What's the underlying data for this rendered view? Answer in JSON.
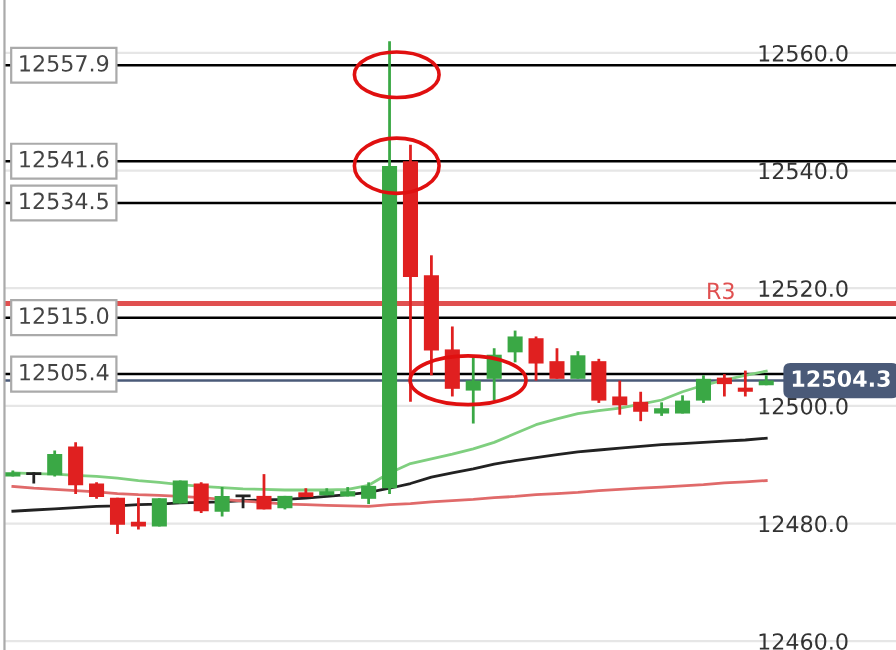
{
  "chart_data": {
    "type": "candlestick",
    "categories": [
      null,
      null,
      null,
      null,
      null,
      null,
      null,
      null,
      null,
      null,
      null,
      null,
      null,
      null,
      null,
      null,
      null,
      null,
      null,
      null,
      null,
      null,
      null,
      null,
      null,
      null,
      null,
      null,
      null,
      null,
      null,
      null,
      null,
      null,
      null,
      null,
      null
    ],
    "ohlc": [
      [
        12488,
        12489,
        12488,
        12488.7
      ],
      [
        12488.5,
        12488.7,
        12486.8,
        12488.5
      ],
      [
        12488.2,
        12492.4,
        12488,
        12491.8
      ],
      [
        12493.1,
        12493.8,
        12485,
        12486.5
      ],
      [
        12486.8,
        12487,
        12484.2,
        12484.5
      ],
      [
        12484.4,
        12484.4,
        12478.2,
        12479.8
      ],
      [
        12480.3,
        12484.4,
        12479,
        12479.5
      ],
      [
        12479.5,
        12484.3,
        12479.5,
        12484.3
      ],
      [
        12483.4,
        12487.3,
        12483.4,
        12487.3
      ],
      [
        12486.8,
        12487,
        12481.8,
        12482.1
      ],
      [
        12482,
        12486.2,
        12481.2,
        12484.7
      ],
      [
        12484.7,
        12484.8,
        12482.6,
        12484.7
      ],
      [
        12484.7,
        12488.4,
        12482.4,
        12482.4
      ],
      [
        12482.6,
        12484.7,
        12482.4,
        12484.7
      ],
      [
        12485.3,
        12486,
        12484.5,
        12484.5
      ],
      [
        12484.8,
        12486,
        12484.8,
        12485.5
      ],
      [
        12484.6,
        12486.2,
        12484.6,
        12485.5
      ],
      [
        12484.2,
        12487,
        12483.3,
        12486.4
      ],
      [
        12486,
        12562,
        12485,
        12540.8
      ],
      [
        12541.6,
        12544.4,
        12500.7,
        12521.9
      ],
      [
        12522.2,
        12525.6,
        12505.2,
        12509.4
      ],
      [
        12509.6,
        12513.5,
        12501.6,
        12502.9
      ],
      [
        12502.6,
        12508.3,
        12497,
        12504.3
      ],
      [
        12504.6,
        12509.8,
        12500.9,
        12508.7
      ],
      [
        12509.1,
        12512.8,
        12507.4,
        12511.8
      ],
      [
        12511.5,
        12511.8,
        12504.3,
        12507.2
      ],
      [
        12507.6,
        12509.8,
        12504.6,
        12504.6
      ],
      [
        12504.6,
        12509.3,
        12504.6,
        12508.6
      ],
      [
        12507.6,
        12508,
        12500.5,
        12500.9
      ],
      [
        12501.6,
        12504.3,
        12498.5,
        12500.1
      ],
      [
        12500.7,
        12502.4,
        12497.4,
        12499
      ],
      [
        12498.7,
        12500.6,
        12498.3,
        12499.6
      ],
      [
        12498.7,
        12501.8,
        12498.7,
        12500.9
      ],
      [
        12500.9,
        12505.2,
        12500.5,
        12504.6
      ],
      [
        12504.8,
        12505.4,
        12501.6,
        12503.7
      ],
      [
        12503.1,
        12506,
        12501.6,
        12502.4
      ],
      [
        12503.5,
        12505.2,
        12503.5,
        12504.3
      ]
    ],
    "series": [
      {
        "type": "line",
        "color": "#7fcf7f",
        "values": [
          12488.6,
          12488.5,
          12488.4,
          12488.2,
          12488,
          12487.7,
          12487.3,
          12487,
          12486.6,
          12486.3,
          12486.1,
          12485.9,
          12485.8,
          12485.7,
          12485.7,
          12485.7,
          12485.8,
          12486.5,
          12488.6,
          12490.2,
          12491,
          12491.8,
          12492.7,
          12493.8,
          12495.3,
          12496.8,
          12497.8,
          12498.7,
          12499.2,
          12499.6,
          12500.3,
          12501,
          12502.4,
          12503.5,
          12504.4,
          12505.2,
          12505.9
        ]
      },
      {
        "type": "line",
        "color": "#222222",
        "values": [
          12482.1,
          12482.3,
          12482.5,
          12482.7,
          12482.9,
          12483,
          12483.2,
          12483.3,
          12483.5,
          12483.6,
          12483.7,
          12483.9,
          12484,
          12484.1,
          12484.3,
          12484.6,
          12484.9,
          12485.3,
          12486,
          12486.8,
          12487.9,
          12488.6,
          12489.3,
          12490.1,
          12490.7,
          12491.2,
          12491.7,
          12492.2,
          12492.5,
          12492.8,
          12493.1,
          12493.4,
          12493.6,
          12493.8,
          12494,
          12494.2,
          12494.5
        ]
      },
      {
        "type": "line",
        "color": "#e06a6a",
        "values": [
          12486.3,
          12486,
          12485.8,
          12485.6,
          12485.4,
          12485.1,
          12484.9,
          12484.8,
          12484.6,
          12484.4,
          12484.1,
          12483.8,
          12483.6,
          12483.3,
          12483.2,
          12483.1,
          12483,
          12482.9,
          12483.2,
          12483.4,
          12483.7,
          12483.9,
          12484.1,
          12484.4,
          12484.6,
          12484.9,
          12485.1,
          12485.3,
          12485.6,
          12485.8,
          12486,
          12486.2,
          12486.4,
          12486.6,
          12486.9,
          12487.1,
          12487.3
        ]
      }
    ],
    "ylim": [
      12458.5,
      12569
    ],
    "yticks": [
      {
        "value": 12460,
        "label": "12460.0"
      },
      {
        "value": 12480,
        "label": "12480.0"
      },
      {
        "value": 12500,
        "label": "12500.0"
      },
      {
        "value": 12520,
        "label": "12520.0"
      },
      {
        "value": 12540,
        "label": "12540.0"
      },
      {
        "value": 12560,
        "label": "12560.0"
      }
    ],
    "tick_labels": "y",
    "grid": "y",
    "ref_lines": [
      {
        "axis": "y",
        "value": 12557.9,
        "label": "12557.9",
        "color": "#000000"
      },
      {
        "axis": "y",
        "value": 12541.6,
        "label": "12541.6",
        "color": "#000000"
      },
      {
        "axis": "y",
        "value": 12534.5,
        "label": "12534.5",
        "color": "#000000"
      },
      {
        "axis": "y",
        "value": 12515.0,
        "label": "12515.0",
        "color": "#000000"
      },
      {
        "axis": "y",
        "value": 12505.4,
        "label": "12505.4",
        "color": "#000000"
      },
      {
        "axis": "y",
        "value": 12517.4,
        "label": "R3",
        "color": "#e05050"
      },
      {
        "axis": "y",
        "value": 12504.3,
        "label": "12504.3",
        "color": "#4a5a78"
      }
    ]
  }
}
